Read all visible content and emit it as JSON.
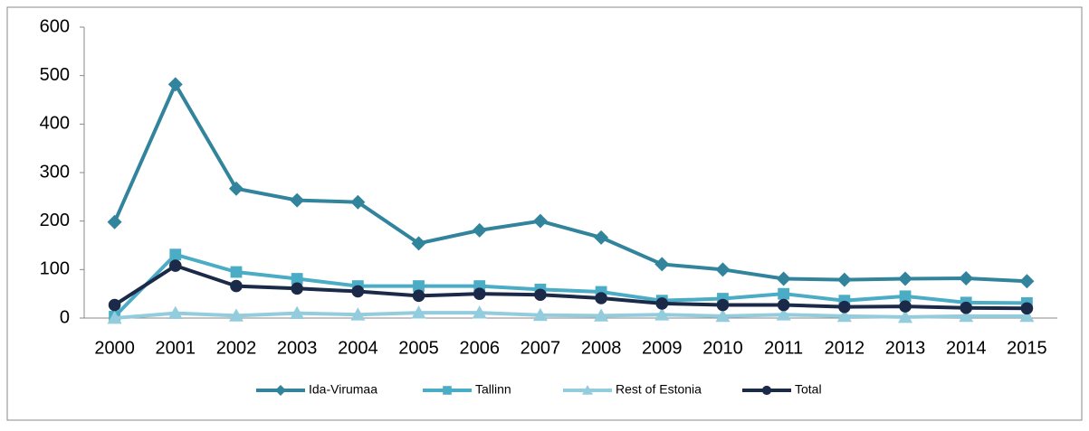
{
  "chart_data": {
    "type": "line",
    "categories": [
      "2000",
      "2001",
      "2002",
      "2003",
      "2004",
      "2005",
      "2006",
      "2007",
      "2008",
      "2009",
      "2010",
      "2011",
      "2012",
      "2013",
      "2014",
      "2015"
    ],
    "series": [
      {
        "name": "Ida-Virumaa",
        "color": "#31849b",
        "marker": "diamond",
        "values": [
          198,
          482,
          267,
          243,
          239,
          154,
          181,
          200,
          166,
          111,
          100,
          81,
          79,
          81,
          82,
          76
        ]
      },
      {
        "name": "Tallinn",
        "color": "#4bacc6",
        "marker": "square",
        "values": [
          3,
          131,
          95,
          81,
          66,
          66,
          66,
          59,
          54,
          36,
          40,
          50,
          36,
          45,
          32,
          31
        ]
      },
      {
        "name": "Rest of Estonia",
        "color": "#93cddd",
        "marker": "triangle",
        "values": [
          0,
          10,
          5,
          10,
          7,
          11,
          11,
          6,
          5,
          7,
          4,
          7,
          4,
          2,
          4,
          4
        ]
      },
      {
        "name": "Total",
        "color": "#1b2a48",
        "marker": "circle",
        "values": [
          27,
          108,
          66,
          61,
          55,
          46,
          50,
          48,
          41,
          30,
          27,
          27,
          23,
          24,
          21,
          20
        ]
      }
    ],
    "ylim": [
      0,
      600
    ],
    "yticks": [
      0,
      100,
      200,
      300,
      400,
      500,
      600
    ],
    "grid": false,
    "legend": "bottom"
  }
}
